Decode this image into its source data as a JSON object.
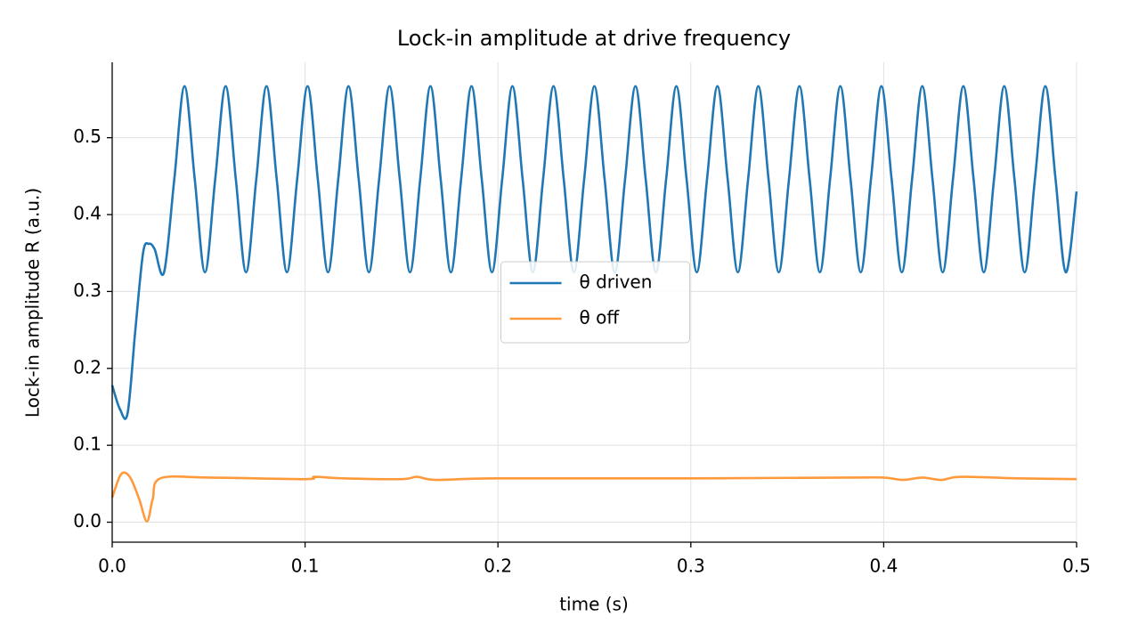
{
  "chart_data": {
    "type": "line",
    "title": "Lock-in amplitude at drive frequency",
    "xlabel": "time (s)",
    "ylabel": "Lock-in amplitude R (a.u.)",
    "xlim": [
      0,
      0.5
    ],
    "ylim": [
      -0.026,
      0.598
    ],
    "xticks": [
      {
        "value": 0,
        "label": "0.0"
      },
      0.1,
      0.2,
      0.3,
      0.4,
      0.5
    ],
    "yticks": [
      {
        "value": 0,
        "label": "0.0"
      },
      0.1,
      0.2,
      0.3,
      0.4,
      0.5
    ],
    "grid": true,
    "legend": "center",
    "smooth": true,
    "series": [
      {
        "name": "θ driven",
        "color": "#1f77b4",
        "x": [
          0,
          0.004,
          0.008,
          0.012,
          0.016,
          0.019,
          0.022,
          0.0269,
          0.0322,
          0.0375,
          0.0428,
          0.0481,
          0.0534,
          0.0588,
          0.0641,
          0.0694,
          0.0747,
          0.08,
          0.0853,
          0.0906,
          0.0959,
          0.1013,
          0.1066,
          0.1119,
          0.1172,
          0.1225,
          0.1278,
          0.1331,
          0.1384,
          0.1438,
          0.1491,
          0.1544,
          0.1597,
          0.165,
          0.1703,
          0.1756,
          0.1809,
          0.1863,
          0.1916,
          0.1969,
          0.2022,
          0.2075,
          0.2128,
          0.2181,
          0.2234,
          0.2288,
          0.2341,
          0.2394,
          0.2447,
          0.25,
          0.2553,
          0.2606,
          0.2659,
          0.2713,
          0.2766,
          0.2819,
          0.2872,
          0.2925,
          0.2978,
          0.3031,
          0.3084,
          0.3138,
          0.3191,
          0.3244,
          0.3297,
          0.335,
          0.3403,
          0.3456,
          0.3509,
          0.3563,
          0.3616,
          0.3669,
          0.3722,
          0.3775,
          0.3828,
          0.3881,
          0.3934,
          0.3988,
          0.4041,
          0.4094,
          0.4147,
          0.42,
          0.4253,
          0.4306,
          0.4359,
          0.4413,
          0.4466,
          0.4519,
          0.4572,
          0.4625,
          0.4678,
          0.4731,
          0.4784,
          0.4838,
          0.4891,
          0.4944,
          0.5
        ],
        "values": [
          0.178,
          0.147,
          0.142,
          0.25,
          0.35,
          0.362,
          0.355,
          0.325,
          0.446,
          0.567,
          0.446,
          0.325,
          0.446,
          0.567,
          0.446,
          0.325,
          0.446,
          0.567,
          0.446,
          0.325,
          0.446,
          0.567,
          0.446,
          0.325,
          0.446,
          0.567,
          0.446,
          0.325,
          0.446,
          0.567,
          0.446,
          0.325,
          0.446,
          0.567,
          0.446,
          0.325,
          0.446,
          0.567,
          0.446,
          0.325,
          0.446,
          0.567,
          0.446,
          0.325,
          0.446,
          0.567,
          0.446,
          0.325,
          0.446,
          0.567,
          0.446,
          0.325,
          0.446,
          0.567,
          0.446,
          0.325,
          0.446,
          0.567,
          0.446,
          0.325,
          0.446,
          0.567,
          0.446,
          0.325,
          0.446,
          0.567,
          0.446,
          0.325,
          0.446,
          0.567,
          0.446,
          0.325,
          0.446,
          0.567,
          0.446,
          0.325,
          0.446,
          0.567,
          0.446,
          0.325,
          0.446,
          0.567,
          0.446,
          0.325,
          0.446,
          0.567,
          0.446,
          0.325,
          0.446,
          0.567,
          0.446,
          0.325,
          0.446,
          0.567,
          0.446,
          0.325,
          0.43
        ]
      },
      {
        "name": "θ off",
        "color": "#ff9a3c",
        "x": [
          0,
          0.004,
          0.007,
          0.01,
          0.014,
          0.018,
          0.021,
          0.025,
          0.05,
          0.1,
          0.105,
          0.12,
          0.15,
          0.158,
          0.168,
          0.2,
          0.3,
          0.38,
          0.4,
          0.41,
          0.42,
          0.43,
          0.44,
          0.47,
          0.5
        ],
        "values": [
          0.032,
          0.06,
          0.064,
          0.055,
          0.03,
          0.001,
          0.03,
          0.057,
          0.058,
          0.056,
          0.059,
          0.057,
          0.056,
          0.059,
          0.055,
          0.057,
          0.057,
          0.058,
          0.058,
          0.055,
          0.058,
          0.055,
          0.059,
          0.057,
          0.056
        ]
      }
    ]
  }
}
